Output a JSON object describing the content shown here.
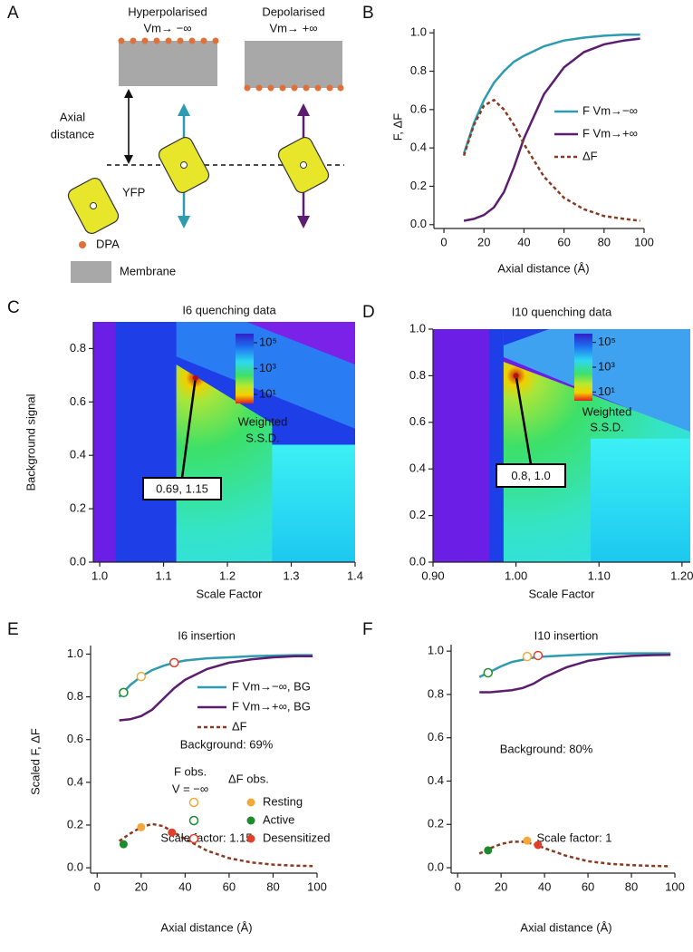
{
  "panel_labels": [
    "A",
    "B",
    "C",
    "D",
    "E",
    "F"
  ],
  "diagram": {
    "hyperpolarised": "Hyperpolarised",
    "hyperpolarised_vm": "Vm→ −∞",
    "depolarised": "Depolarised",
    "depolarised_vm": "Vm→ +∞",
    "axial_distance": [
      "Axial",
      "distance"
    ],
    "yfp": "YFP",
    "dpa": "DPA",
    "membrane": "Membrane"
  },
  "chart_data": [
    {
      "type": "line",
      "xlabel": "Axial distance (Å)",
      "ylabel": "F, ΔF",
      "x": [
        10,
        15,
        20,
        25,
        30,
        35,
        40,
        50,
        60,
        70,
        80,
        90,
        98
      ],
      "series": [
        {
          "name": "F Vm→−∞",
          "color": "#2e9bb0",
          "values": [
            0.37,
            0.53,
            0.65,
            0.74,
            0.8,
            0.85,
            0.88,
            0.93,
            0.96,
            0.975,
            0.985,
            0.99,
            0.99
          ]
        },
        {
          "name": "F Vm→+∞",
          "color": "#5c1d6e",
          "values": [
            0.02,
            0.03,
            0.05,
            0.09,
            0.17,
            0.3,
            0.45,
            0.68,
            0.82,
            0.9,
            0.94,
            0.96,
            0.97
          ]
        },
        {
          "name": "ΔF",
          "color": "#8b3a22",
          "dashed": true,
          "values": [
            0.36,
            0.52,
            0.62,
            0.65,
            0.6,
            0.52,
            0.42,
            0.25,
            0.14,
            0.08,
            0.045,
            0.03,
            0.02
          ]
        }
      ],
      "xlim": [
        -5,
        100
      ],
      "ylim": [
        -0.02,
        1.02
      ],
      "xticks": [
        0,
        20,
        40,
        60,
        80,
        100
      ],
      "yticks": [
        {
          "value": 0,
          "label": "0.0"
        },
        0.2,
        0.4,
        0.6,
        0.8,
        {
          "value": 1,
          "label": "1.0"
        }
      ]
    },
    {
      "type": "heatmap",
      "title": "I6 quenching data",
      "xlabel": "Scale Factor",
      "ylabel": "Background signal",
      "xlim": [
        0.99,
        1.4
      ],
      "ylim": [
        0,
        0.9
      ],
      "xticks": [
        {
          "value": 1,
          "label": "1.0"
        },
        1.1,
        1.2,
        1.3,
        1.4
      ],
      "yticks": [
        {
          "value": 0,
          "label": "0.0"
        },
        0.2,
        0.4,
        0.6,
        0.8
      ],
      "colorbar": {
        "label": [
          "Weighted",
          "S.S.D."
        ],
        "log": true,
        "lim": [
          2,
          500000
        ],
        "ticks": [
          {
            "value": 10,
            "label": "10¹"
          },
          {
            "value": 1000,
            "label": "10³"
          },
          {
            "value": 100000,
            "label": "10⁵"
          }
        ]
      },
      "annotation": {
        "text": "0.69, 1.15",
        "x": 1.15,
        "y": 0.69
      }
    },
    {
      "type": "heatmap",
      "title": "I10 quenching data",
      "xlabel": "Scale Factor",
      "xlim": [
        0.9,
        1.21
      ],
      "ylim": [
        0,
        1
      ],
      "xticks": [
        {
          "value": 0.9,
          "label": "0.90"
        },
        {
          "value": 1,
          "label": "1.00"
        },
        {
          "value": 1.1,
          "label": "1.10"
        },
        {
          "value": 1.2,
          "label": "1.20"
        }
      ],
      "yticks": [
        {
          "value": 0,
          "label": "0.0"
        },
        0.2,
        0.4,
        0.6,
        0.8,
        {
          "value": 1,
          "label": "1.0"
        }
      ],
      "colorbar": {
        "label": [
          "Weighted",
          "S.S.D."
        ],
        "log": true,
        "lim": [
          2,
          500000
        ],
        "ticks": [
          {
            "value": 10,
            "label": "10¹"
          },
          {
            "value": 1000,
            "label": "10³"
          },
          {
            "value": 100000,
            "label": "10⁵"
          }
        ]
      },
      "annotation": {
        "text": "0.8, 1.0",
        "x": 1.0,
        "y": 0.8
      }
    },
    {
      "type": "line",
      "title": "I6 insertion",
      "xlabel": "Axial distance (Å)",
      "ylabel": "Scaled F,  ΔF",
      "x": [
        10,
        15,
        20,
        25,
        30,
        35,
        40,
        50,
        60,
        70,
        80,
        90,
        98
      ],
      "series": [
        {
          "name": "F Vm→−∞, BG",
          "color": "#2e9bb0",
          "values": [
            0.8,
            0.855,
            0.895,
            0.925,
            0.945,
            0.96,
            0.97,
            0.98,
            0.985,
            0.99,
            0.993,
            0.995,
            0.995
          ]
        },
        {
          "name": "F Vm→+∞, BG",
          "color": "#5c1d6e",
          "values": [
            0.69,
            0.695,
            0.71,
            0.74,
            0.79,
            0.84,
            0.88,
            0.93,
            0.96,
            0.975,
            0.985,
            0.99,
            0.99
          ]
        },
        {
          "name": "ΔF",
          "color": "#8b3a22",
          "dashed": true,
          "values": [
            0.125,
            0.16,
            0.19,
            0.205,
            0.195,
            0.165,
            0.135,
            0.08,
            0.045,
            0.025,
            0.015,
            0.01,
            0.008
          ]
        }
      ],
      "notes": [
        "Background: 69%",
        "Scale factor: 1.15"
      ],
      "observation_legend": {
        "f_obs": "F obs.",
        "v": "V = −∞",
        "df_obs": "ΔF obs."
      },
      "observations": [
        {
          "name": "Resting",
          "color": "#f2a93b",
          "f_x": 20,
          "f_y": 0.895,
          "df_x": 20,
          "df_y": 0.19
        },
        {
          "name": "Active",
          "color": "#1e8a2e",
          "f_x": 12,
          "f_y": 0.82,
          "df_x": 12,
          "df_y": 0.11
        },
        {
          "name": "Desensitized",
          "color": "#e0402a",
          "f_x": 35,
          "f_y": 0.96,
          "df_x": 34,
          "df_y": 0.165
        }
      ],
      "xlim": [
        -3,
        100
      ],
      "ylim": [
        -0.025,
        1.04
      ],
      "xticks": [
        0,
        20,
        40,
        60,
        80,
        100
      ],
      "yticks": [
        {
          "value": 0,
          "label": "0.0"
        },
        0.2,
        0.4,
        0.6,
        0.8,
        {
          "value": 1,
          "label": "1.0"
        }
      ]
    },
    {
      "type": "line",
      "title": "I10 insertion",
      "xlabel": "Axial distance (Å)",
      "x": [
        10,
        15,
        20,
        25,
        30,
        35,
        40,
        50,
        60,
        70,
        80,
        90,
        98
      ],
      "series": [
        {
          "color": "#2e9bb0",
          "values": [
            0.88,
            0.905,
            0.93,
            0.95,
            0.96,
            0.97,
            0.975,
            0.98,
            0.985,
            0.988,
            0.99,
            0.99,
            0.99
          ]
        },
        {
          "color": "#5c1d6e",
          "values": [
            0.81,
            0.81,
            0.815,
            0.82,
            0.83,
            0.85,
            0.88,
            0.925,
            0.955,
            0.97,
            0.978,
            0.982,
            0.983
          ]
        },
        {
          "color": "#8b3a22",
          "dashed": true,
          "values": [
            0.065,
            0.09,
            0.11,
            0.12,
            0.12,
            0.11,
            0.09,
            0.055,
            0.03,
            0.018,
            0.012,
            0.008,
            0.007
          ]
        }
      ],
      "notes": [
        "Background: 80%",
        "Scale factor: 1"
      ],
      "observations": [
        {
          "color": "#f2a93b",
          "f_x": 32,
          "f_y": 0.975,
          "df_x": 32,
          "df_y": 0.125
        },
        {
          "color": "#1e8a2e",
          "f_x": 14,
          "f_y": 0.9,
          "df_x": 14,
          "df_y": 0.08
        },
        {
          "color": "#e0402a",
          "f_x": 37,
          "f_y": 0.98,
          "df_x": 37,
          "df_y": 0.105
        }
      ],
      "xlim": [
        -3,
        100
      ],
      "ylim": [
        -0.025,
        1.03
      ],
      "xticks": [
        0,
        20,
        40,
        60,
        80,
        100
      ],
      "yticks": [
        {
          "value": 0,
          "label": "0.0"
        },
        0.2,
        0.4,
        0.6,
        0.8,
        {
          "value": 1,
          "label": "1.0"
        }
      ]
    }
  ]
}
